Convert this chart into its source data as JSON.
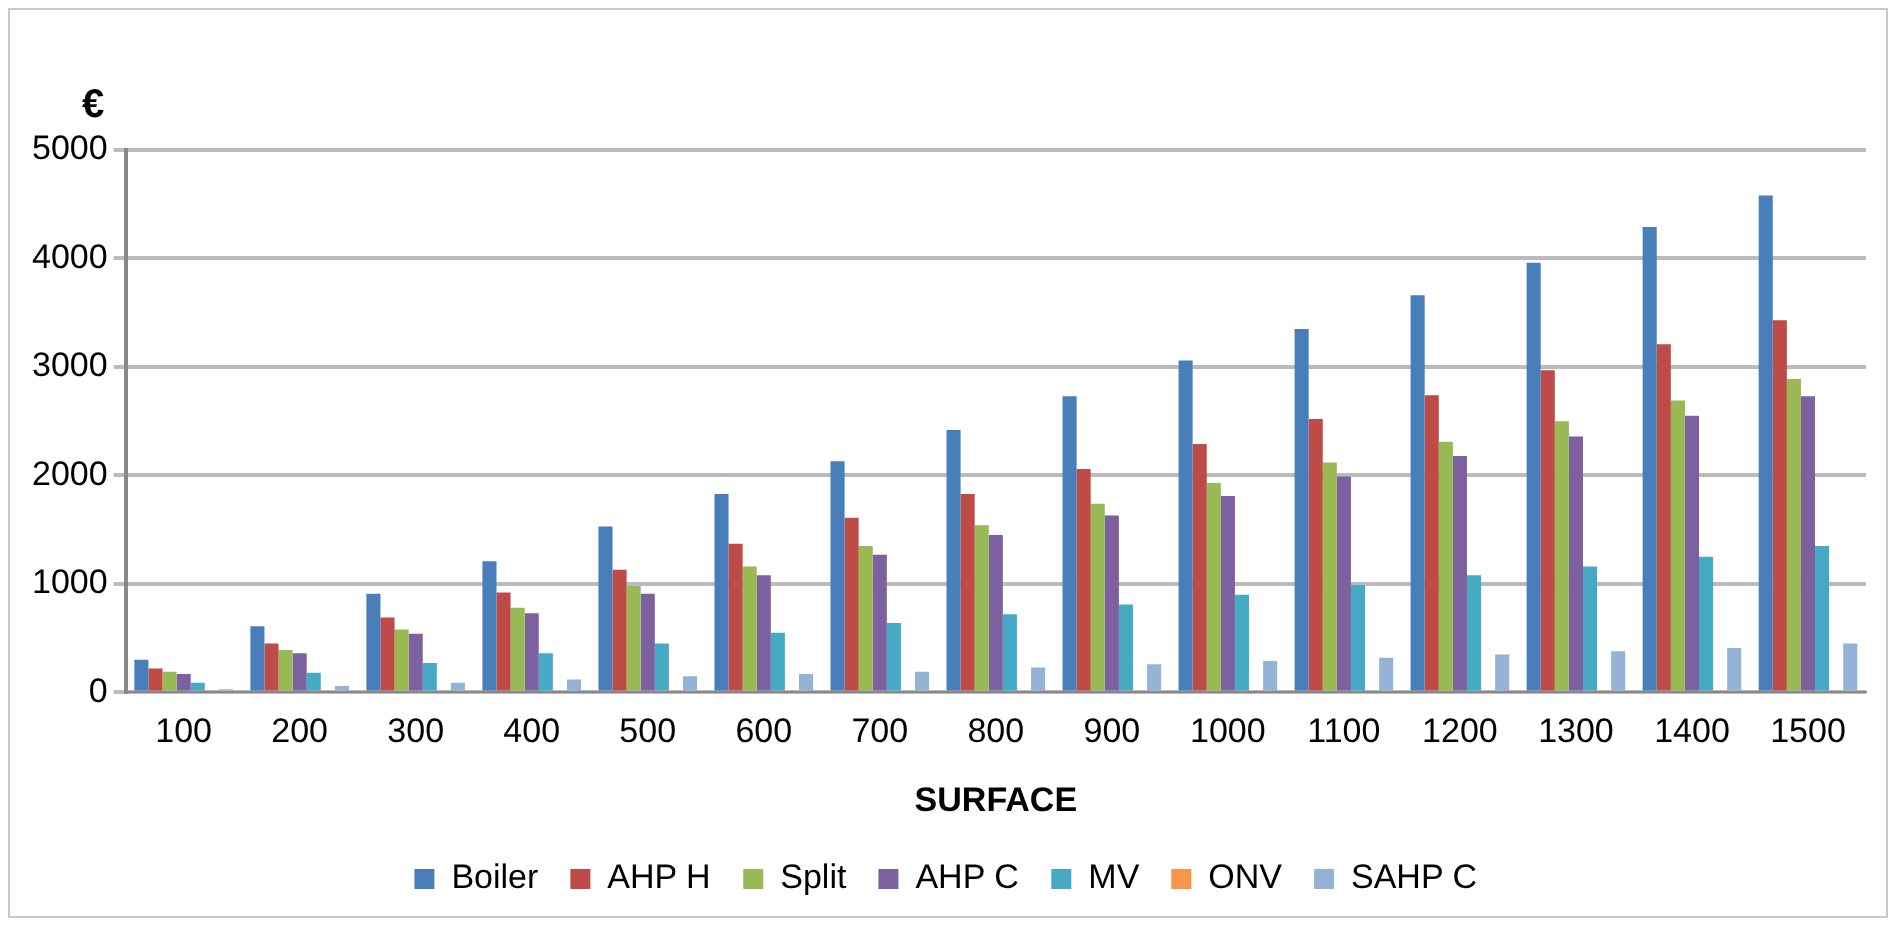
{
  "chart_data": {
    "type": "bar",
    "ylabel": "€",
    "xlabel": "SURFACE",
    "categories": [
      "100",
      "200",
      "300",
      "400",
      "500",
      "600",
      "700",
      "800",
      "900",
      "1000",
      "1100",
      "1200",
      "1300",
      "1400",
      "1500"
    ],
    "series": [
      {
        "name": "Boiler",
        "color": "#4a7ebb",
        "values": [
          300,
          610,
          910,
          1210,
          1530,
          1830,
          2130,
          2420,
          2730,
          3060,
          3350,
          3660,
          3960,
          4290,
          4580
        ]
      },
      {
        "name": "AHP H",
        "color": "#be4b48",
        "values": [
          220,
          450,
          690,
          920,
          1130,
          1370,
          1610,
          1830,
          2060,
          2290,
          2520,
          2740,
          2970,
          3210,
          3430
        ]
      },
      {
        "name": "Split",
        "color": "#98b954",
        "values": [
          190,
          390,
          580,
          780,
          980,
          1160,
          1350,
          1540,
          1740,
          1930,
          2120,
          2310,
          2500,
          2690,
          2890
        ]
      },
      {
        "name": "AHP C",
        "color": "#7d60a0",
        "values": [
          170,
          360,
          540,
          730,
          910,
          1080,
          1270,
          1450,
          1630,
          1810,
          1990,
          2180,
          2360,
          2550,
          2730
        ]
      },
      {
        "name": "MV",
        "color": "#46aac5",
        "values": [
          90,
          180,
          270,
          360,
          450,
          550,
          640,
          720,
          810,
          900,
          990,
          1080,
          1160,
          1250,
          1350
        ]
      },
      {
        "name": "ONV",
        "color": "#f79646",
        "values": [
          0,
          0,
          0,
          0,
          0,
          0,
          0,
          0,
          0,
          0,
          0,
          0,
          0,
          0,
          0
        ]
      },
      {
        "name": "SAHP C",
        "color": "#95b3d7",
        "values": [
          30,
          60,
          90,
          120,
          150,
          170,
          190,
          230,
          260,
          290,
          320,
          350,
          380,
          410,
          450
        ]
      }
    ],
    "ylim": [
      0,
      5000
    ],
    "yticks": [
      0,
      1000,
      2000,
      3000,
      4000,
      5000
    ],
    "grid": "y",
    "legend": "bottom"
  }
}
